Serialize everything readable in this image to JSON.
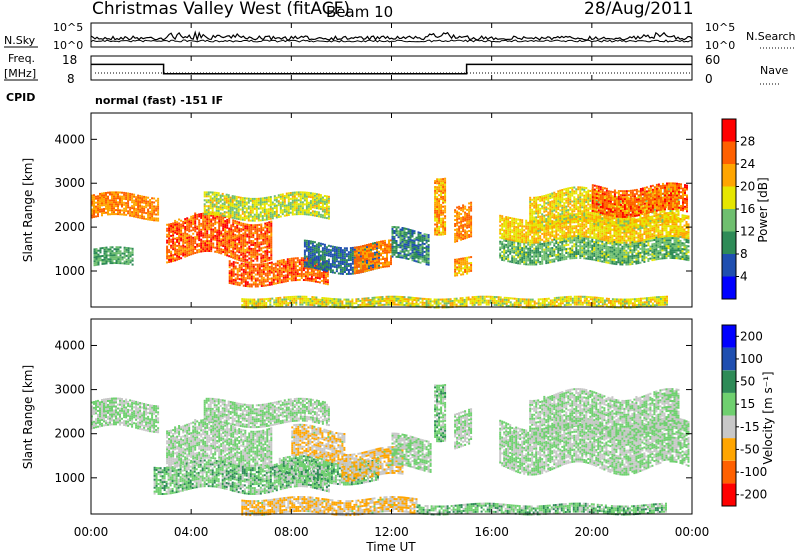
{
  "header": {
    "station": "Christmas Valley West (fitACF)",
    "beam": "Beam 10",
    "date": "28/Aug/2011",
    "mode": "normal (fast)  -151 IF"
  },
  "nsky_panel": {
    "left_label": "N.Sky",
    "right_label": "N.Search",
    "ticks_left": [
      "10^5",
      "10^0"
    ],
    "ticks_right": [
      "10^5",
      "10^0"
    ]
  },
  "freq_panel": {
    "left_label_1": "Freq.",
    "left_label_2": "[MHz]",
    "left_label_3": "CPID",
    "right_label": "Nave",
    "ticks_left": [
      "18",
      "8"
    ],
    "ticks_right": [
      "60",
      "0"
    ]
  },
  "x_axis": {
    "label": "Time UT",
    "ticks": [
      "00:00",
      "04:00",
      "08:00",
      "12:00",
      "16:00",
      "20:00",
      "00:00"
    ]
  },
  "colors": {
    "power": [
      "#0000ff",
      "#1f4fb0",
      "#2e8b57",
      "#6fbf6f",
      "#e6e600",
      "#ffa500",
      "#ff6000",
      "#ff0000"
    ],
    "velocity": [
      "#ff0000",
      "#ff6000",
      "#ffa500",
      "#c8c8c8",
      "#6fd06f",
      "#2e8b57",
      "#1f4fb0",
      "#0000ff"
    ]
  },
  "chart_data": [
    {
      "type": "heatmap",
      "panel": "power",
      "ylabel": "Slant Range [km]",
      "yticks": [
        "1000",
        "2000",
        "3000",
        "4000"
      ],
      "ylim": [
        180,
        4600
      ],
      "xlim": [
        0,
        24
      ],
      "colorbar_label": "Power [dB]",
      "colorbar_ticks": [
        "4",
        "8",
        "12",
        "16",
        "20",
        "24",
        "28"
      ],
      "colorbar_range": [
        0,
        32
      ],
      "bands": [
        {
          "t0": 0.0,
          "t1": 2.7,
          "r0": 2200,
          "r1": 2700,
          "value": 24
        },
        {
          "t0": 0.1,
          "t1": 1.7,
          "r0": 1100,
          "r1": 1500,
          "value": 12
        },
        {
          "t0": 3.0,
          "t1": 7.2,
          "r0": 1300,
          "r1": 2200,
          "value": 26
        },
        {
          "t0": 4.5,
          "t1": 9.5,
          "r0": 2200,
          "r1": 2700,
          "value": 17
        },
        {
          "t0": 5.5,
          "t1": 9.5,
          "r0": 700,
          "r1": 1200,
          "value": 26
        },
        {
          "t0": 8.5,
          "t1": 11.5,
          "r0": 1000,
          "r1": 1600,
          "value": 8
        },
        {
          "t0": 10.5,
          "t1": 12.0,
          "r0": 1000,
          "r1": 1600,
          "value": 24
        },
        {
          "t0": 12.0,
          "t1": 13.5,
          "r0": 1200,
          "r1": 1900,
          "value": 10
        },
        {
          "t0": 13.7,
          "t1": 14.2,
          "r0": 2000,
          "r1": 3300,
          "value": 22
        },
        {
          "t0": 14.5,
          "t1": 15.2,
          "r0": 1700,
          "r1": 2500,
          "value": 24
        },
        {
          "t0": 14.5,
          "t1": 15.2,
          "r0": 900,
          "r1": 1300,
          "value": 22
        },
        {
          "t0": 16.3,
          "t1": 23.9,
          "r0": 1200,
          "r1": 1700,
          "value": 13
        },
        {
          "t0": 16.3,
          "t1": 23.9,
          "r0": 1700,
          "r1": 2200,
          "value": 20
        },
        {
          "t0": 17.5,
          "t1": 23.5,
          "r0": 2000,
          "r1": 2800,
          "value": 19
        },
        {
          "t0": 20.0,
          "t1": 23.8,
          "r0": 2300,
          "r1": 2900,
          "value": 26
        },
        {
          "t0": 6.0,
          "t1": 23.0,
          "r0": 180,
          "r1": 400,
          "value": 18
        }
      ]
    },
    {
      "type": "heatmap",
      "panel": "velocity",
      "ylabel": "Slant Range [km]",
      "yticks": [
        "1000",
        "2000",
        "3000",
        "4000"
      ],
      "ylim": [
        180,
        4600
      ],
      "xlim": [
        0,
        24
      ],
      "colorbar_label": "Velocity [m s⁻¹]",
      "colorbar_ticks": [
        "-200",
        "-100",
        "-50",
        "-15",
        "15",
        "50",
        "100",
        "200"
      ],
      "colorbar_range": [
        -250,
        250
      ],
      "bands": [
        {
          "t0": 0.0,
          "t1": 2.7,
          "r0": 2100,
          "r1": 2700,
          "value": 0
        },
        {
          "t0": 3.0,
          "t1": 7.2,
          "r0": 1300,
          "r1": 2200,
          "value": 0
        },
        {
          "t0": 4.5,
          "t1": 9.5,
          "r0": 2200,
          "r1": 2700,
          "value": 0
        },
        {
          "t0": 2.5,
          "t1": 9.5,
          "r0": 700,
          "r1": 1300,
          "value": 30
        },
        {
          "t0": 7.5,
          "t1": 11.5,
          "r0": 900,
          "r1": 1400,
          "value": 30
        },
        {
          "t0": 8.0,
          "t1": 10.2,
          "r0": 1400,
          "r1": 2100,
          "value": -60
        },
        {
          "t0": 10.0,
          "t1": 12.5,
          "r0": 1000,
          "r1": 1600,
          "value": -60
        },
        {
          "t0": 12.0,
          "t1": 13.6,
          "r0": 1200,
          "r1": 1900,
          "value": 0
        },
        {
          "t0": 13.7,
          "t1": 14.2,
          "r0": 2000,
          "r1": 3300,
          "value": 30
        },
        {
          "t0": 14.5,
          "t1": 15.2,
          "r0": 1700,
          "r1": 2500,
          "value": 0
        },
        {
          "t0": 16.3,
          "t1": 23.9,
          "r0": 1200,
          "r1": 2200,
          "value": 0
        },
        {
          "t0": 17.5,
          "t1": 23.5,
          "r0": 2000,
          "r1": 2900,
          "value": 0
        },
        {
          "t0": 6.0,
          "t1": 13.0,
          "r0": 180,
          "r1": 500,
          "value": -60
        },
        {
          "t0": 13.0,
          "t1": 23.0,
          "r0": 180,
          "r1": 400,
          "value": 30
        }
      ]
    }
  ],
  "freq_series": {
    "segments": [
      {
        "t0": 0.0,
        "t1": 2.9,
        "freq": 14.5
      },
      {
        "t0": 2.9,
        "t1": 15.0,
        "freq": 10.6
      },
      {
        "t0": 15.0,
        "t1": 24.0,
        "freq": 14.5
      }
    ],
    "freq_range": [
      8,
      18
    ]
  }
}
